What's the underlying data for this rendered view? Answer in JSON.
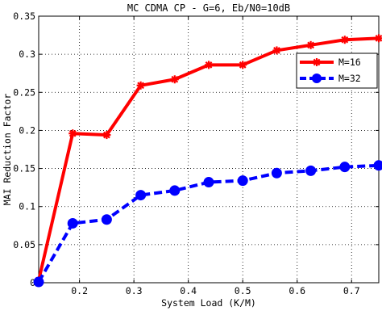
{
  "chart_data": {
    "type": "line",
    "title": "MC CDMA CP - G=6, Eb/N0=10dB",
    "xlabel": "System Load (K/M)",
    "ylabel": "MAI Reduction Factor",
    "xlim": [
      0.125,
      0.75
    ],
    "ylim": [
      0,
      0.35
    ],
    "xticks": [
      0.2,
      0.3,
      0.4,
      0.5,
      0.6,
      0.7
    ],
    "xtick_labels": [
      "0.2",
      "0.3",
      "0.4",
      "0.5",
      "0.6",
      "0.7"
    ],
    "yticks": [
      0,
      0.05,
      0.1,
      0.15,
      0.2,
      0.25,
      0.3,
      0.35
    ],
    "ytick_labels": [
      "0",
      "0.05",
      "0.1",
      "0.15",
      "0.2",
      "0.25",
      "0.3",
      "0.35"
    ],
    "grid": true,
    "legend_position": "top-right",
    "series": [
      {
        "name": "M=16",
        "color": "#ff0000",
        "line_style": "solid",
        "marker": "star",
        "x": [
          0.125,
          0.1875,
          0.25,
          0.3125,
          0.375,
          0.4375,
          0.5,
          0.5625,
          0.625,
          0.6875,
          0.75
        ],
        "values": [
          0.003,
          0.196,
          0.194,
          0.259,
          0.267,
          0.286,
          0.286,
          0.305,
          0.312,
          0.319,
          0.321
        ]
      },
      {
        "name": "M=32",
        "color": "#0000ff",
        "line_style": "dashed",
        "marker": "circle",
        "x": [
          0.125,
          0.1875,
          0.25,
          0.3125,
          0.375,
          0.4375,
          0.5,
          0.5625,
          0.625,
          0.6875,
          0.75
        ],
        "values": [
          0.001,
          0.078,
          0.083,
          0.115,
          0.121,
          0.132,
          0.134,
          0.144,
          0.147,
          0.152,
          0.154
        ]
      }
    ]
  }
}
